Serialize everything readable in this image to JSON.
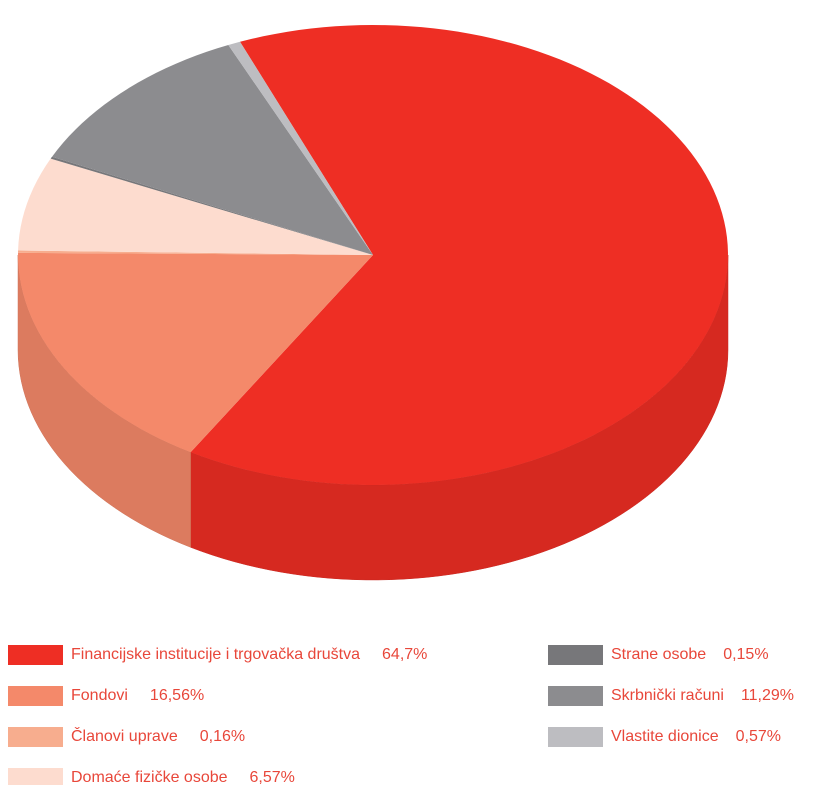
{
  "chart_data": {
    "type": "pie",
    "categories": [
      "Financijske institucije i trgovačka društva",
      "Fondovi",
      "Članovi uprave",
      "Domaće fizičke osobe",
      "Strane osobe",
      "Skrbnički računi",
      "Vlastite dionice"
    ],
    "values": [
      64.7,
      16.56,
      0.16,
      6.57,
      0.15,
      11.29,
      0.57
    ],
    "value_labels": [
      "64,7%",
      "16,56%",
      "0,16%",
      "6,57%",
      "0,15%",
      "11,29%",
      "0,57%"
    ],
    "colors": [
      "#ee2e24",
      "#f4896a",
      "#f7ad8e",
      "#fddccf",
      "#77777a",
      "#8c8c8f",
      "#bdbdc1"
    ],
    "legend": "bottom"
  }
}
